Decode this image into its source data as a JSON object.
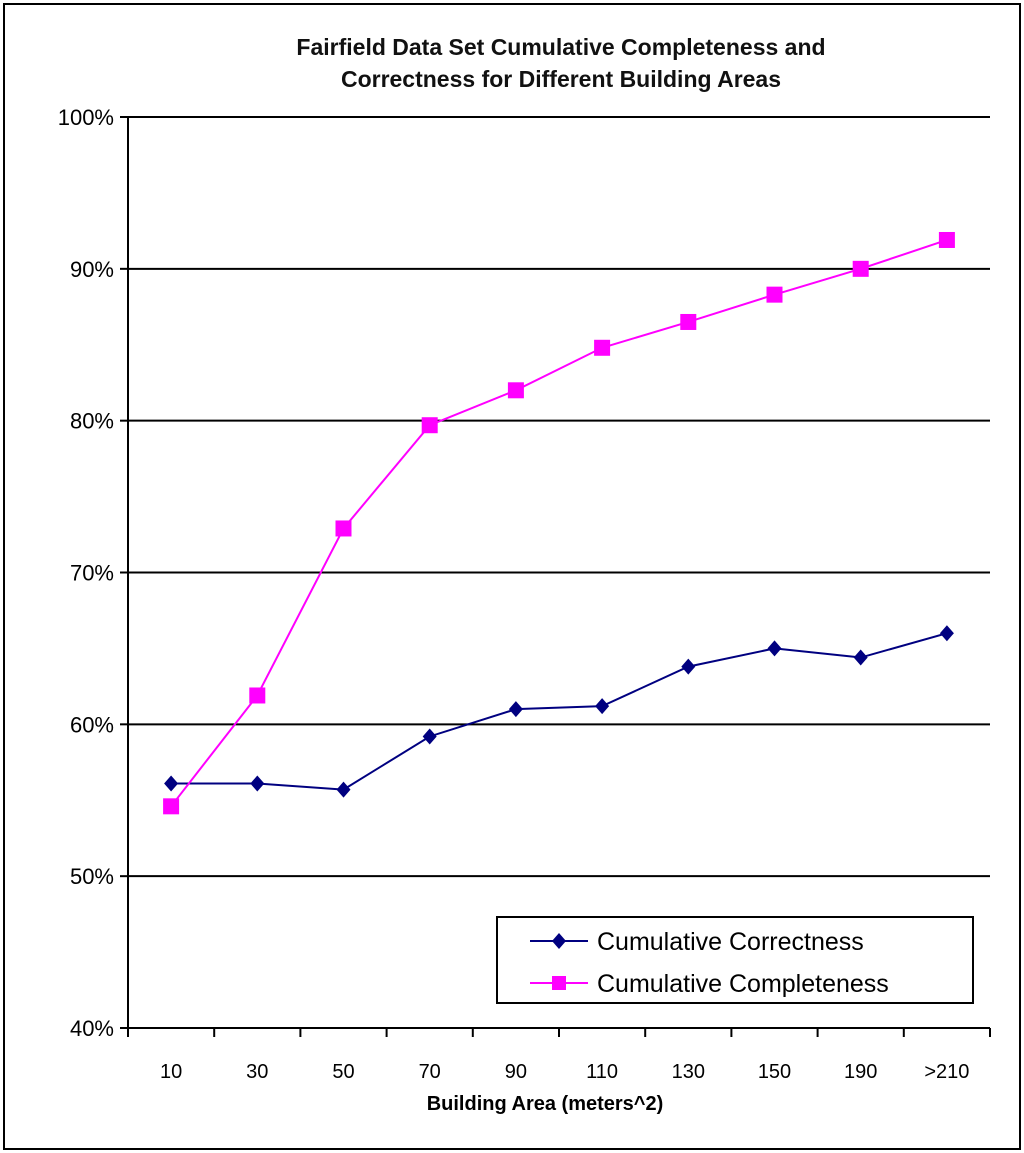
{
  "chart_data": {
    "type": "line",
    "title_lines": [
      "Fairfield Data Set  Cumulative Completeness and",
      "Correctness for Different Building  Areas"
    ],
    "xlabel": "Building Area (meters^2)",
    "ylabel": "",
    "categories": [
      "10",
      "30",
      "50",
      "70",
      "90",
      "110",
      "130",
      "150",
      "190",
      ">210"
    ],
    "ylim": [
      40,
      100
    ],
    "yticks": [
      "40%",
      "50%",
      "60%",
      "70%",
      "80%",
      "90%",
      "100%"
    ],
    "grid": true,
    "legend_position": "bottom-right",
    "series": [
      {
        "name": "Cumulative Correctness",
        "color": "#000080",
        "marker": "diamond",
        "values": [
          56.1,
          56.1,
          55.7,
          59.2,
          61.0,
          61.2,
          63.8,
          65.0,
          64.4,
          66.0
        ]
      },
      {
        "name": "Cumulative Completeness",
        "color": "#FF00FF",
        "marker": "square",
        "values": [
          54.6,
          61.9,
          72.9,
          79.7,
          82.0,
          84.8,
          86.5,
          88.3,
          90.0,
          91.9
        ]
      }
    ]
  }
}
